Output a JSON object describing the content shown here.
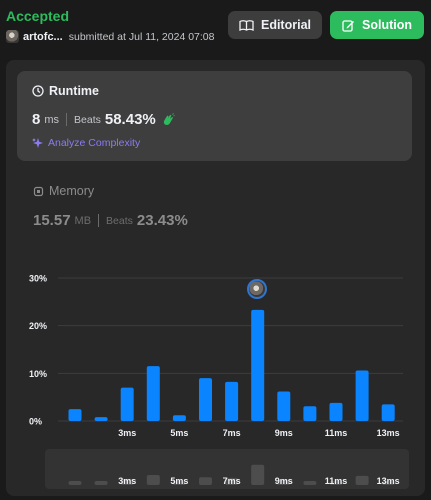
{
  "header": {
    "status": "Accepted",
    "username": "artofc...",
    "submitted_text": "submitted at Jul 11, 2024 07:08",
    "editorial_label": "Editorial",
    "solution_label": "Solution"
  },
  "runtime": {
    "title": "Runtime",
    "value": "8",
    "unit": "ms",
    "beats_label": "Beats",
    "beats_pct": "58.43%",
    "analyze_label": "Analyze Complexity"
  },
  "memory": {
    "title": "Memory",
    "value": "15.57",
    "unit": "MB",
    "beats_label": "Beats",
    "beats_pct": "23.43%"
  },
  "colors": {
    "accent": "#2cbb5d",
    "bar": "#0a84ff",
    "analyze": "#8a7cf0"
  },
  "icons": {
    "editorial": "book-icon",
    "solution": "edit-icon",
    "runtime": "clock-icon",
    "memory": "chip-icon",
    "analyze": "sparkle-icon",
    "beats": "clap-icon"
  },
  "chart_data": {
    "type": "bar",
    "x": [
      1,
      2,
      3,
      4,
      5,
      6,
      7,
      8,
      9,
      10,
      11,
      12,
      13
    ],
    "values": [
      2.5,
      0.8,
      7,
      11.5,
      1.2,
      9,
      8.2,
      23.3,
      6.2,
      3.1,
      3.8,
      10.6,
      3.5
    ],
    "y_ticks": [
      0,
      10,
      20,
      30
    ],
    "y_tick_labels": [
      "0%",
      "10%",
      "20%",
      "30%"
    ],
    "x_tick_labels": [
      "3ms",
      "5ms",
      "7ms",
      "9ms",
      "11ms",
      "13ms"
    ],
    "x_tick_positions": [
      3,
      5,
      7,
      9,
      11,
      13
    ],
    "highlight_index": 7,
    "ylim": [
      0,
      30
    ],
    "grid": true
  }
}
